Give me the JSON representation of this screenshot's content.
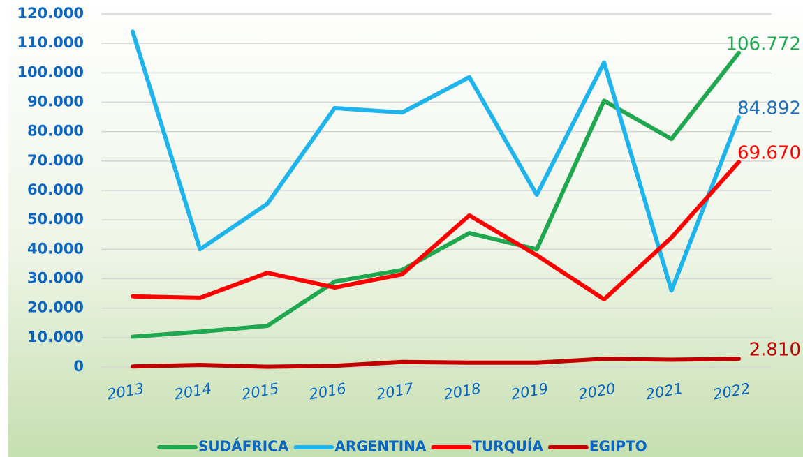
{
  "chart_data": {
    "type": "line",
    "categories": [
      "2013",
      "2014",
      "2015",
      "2016",
      "2017",
      "2018",
      "2019",
      "2020",
      "2021",
      "2022"
    ],
    "ylim": [
      0,
      120000
    ],
    "yticks": [
      0,
      {
        "value": 10000,
        "label": "10.000"
      },
      {
        "value": 20000,
        "label": "20.000"
      },
      {
        "value": 30000,
        "label": "30.000"
      },
      {
        "value": 40000,
        "label": "40.000"
      },
      {
        "value": 50000,
        "label": "50.000"
      },
      {
        "value": 60000,
        "label": "60.000"
      },
      {
        "value": 70000,
        "label": "70.000"
      },
      {
        "value": 80000,
        "label": "80.000"
      },
      {
        "value": 90000,
        "label": "90.000"
      },
      {
        "value": 100000,
        "label": "100.000"
      },
      {
        "value": 110000,
        "label": "110.000"
      },
      {
        "value": 120000,
        "label": "120.000"
      }
    ],
    "grid": true,
    "legend": "bottom",
    "series": [
      {
        "name": "SUDÁFRICA",
        "color": "#1fa84f",
        "label_color": "#1fa84f",
        "values": [
          10300,
          12000,
          14000,
          29000,
          33000,
          45500,
          40000,
          90500,
          77500,
          106772
        ],
        "value_labels": [
          null,
          null,
          null,
          null,
          null,
          null,
          null,
          null,
          null,
          "106.772"
        ]
      },
      {
        "name": "ARGENTINA",
        "color": "#1fb4ec",
        "label_color": "#1f6fbf",
        "values": [
          114000,
          40000,
          55500,
          88000,
          86500,
          98500,
          58500,
          103500,
          26000,
          84892
        ],
        "value_labels": [
          null,
          null,
          null,
          null,
          null,
          null,
          null,
          null,
          null,
          "84.892"
        ]
      },
      {
        "name": "TURQUÍA",
        "color": "#ff0000",
        "label_color": "#ff0000",
        "values": [
          24000,
          23500,
          32000,
          27000,
          31500,
          51500,
          38000,
          23000,
          44000,
          69670
        ],
        "value_labels": [
          null,
          null,
          null,
          null,
          null,
          null,
          null,
          null,
          null,
          "69.670"
        ]
      },
      {
        "name": "EGIPTO",
        "color": "#c00000",
        "label_color": "#c00000",
        "values": [
          200,
          700,
          100,
          400,
          1700,
          1500,
          1500,
          2800,
          2500,
          2810
        ],
        "value_labels": [
          null,
          null,
          null,
          null,
          null,
          null,
          null,
          null,
          null,
          "2.810"
        ]
      }
    ]
  }
}
